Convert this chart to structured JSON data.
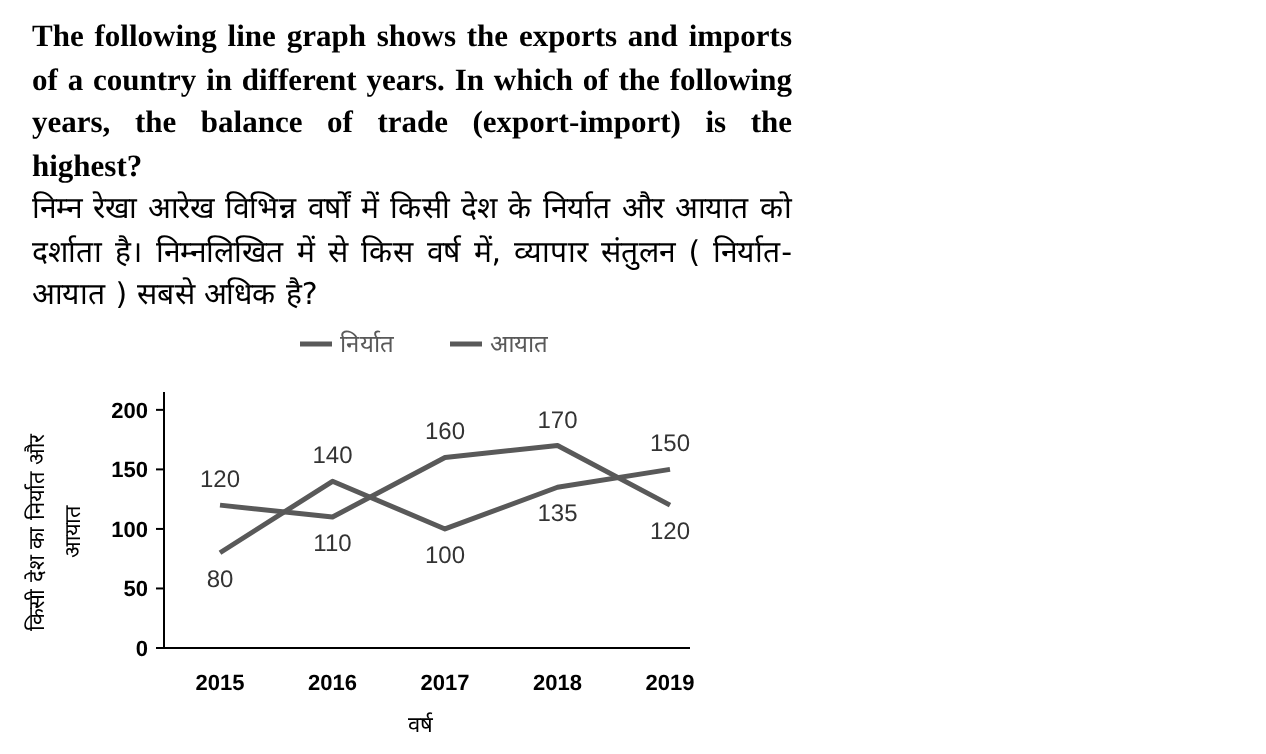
{
  "chart_data": {
    "type": "line",
    "title": "The following line graph shows the exports and imports of a country in different years. In which of the following years, the balance of trade (export-import) is the highest?",
    "subtitle": "निम्न रेखा आरेख विभिन्न वर्षों में किसी देश के निर्यात और आयात को दर्शाता है। निम्नलिखित में से किस वर्ष में, व्यापार संतुलन ( निर्यात-आयात ) सबसे अधिक है?",
    "xlabel": "वर्ष",
    "ylabel": "किसी देश का निर्यात और आयात",
    "categories": [
      "2015",
      "2016",
      "2017",
      "2018",
      "2019"
    ],
    "series": [
      {
        "name": "निर्यात",
        "color": "#595959",
        "values": [
          80,
          140,
          100,
          135,
          150
        ]
      },
      {
        "name": "आयात",
        "color": "#595959",
        "values": [
          120,
          110,
          160,
          170,
          120
        ]
      }
    ],
    "ylim": [
      0,
      215
    ],
    "yticks": [
      0,
      50,
      100,
      150,
      200
    ],
    "data_labels": true,
    "legend": "top",
    "marker": "none",
    "line_style": "solid",
    "grid": false
  }
}
